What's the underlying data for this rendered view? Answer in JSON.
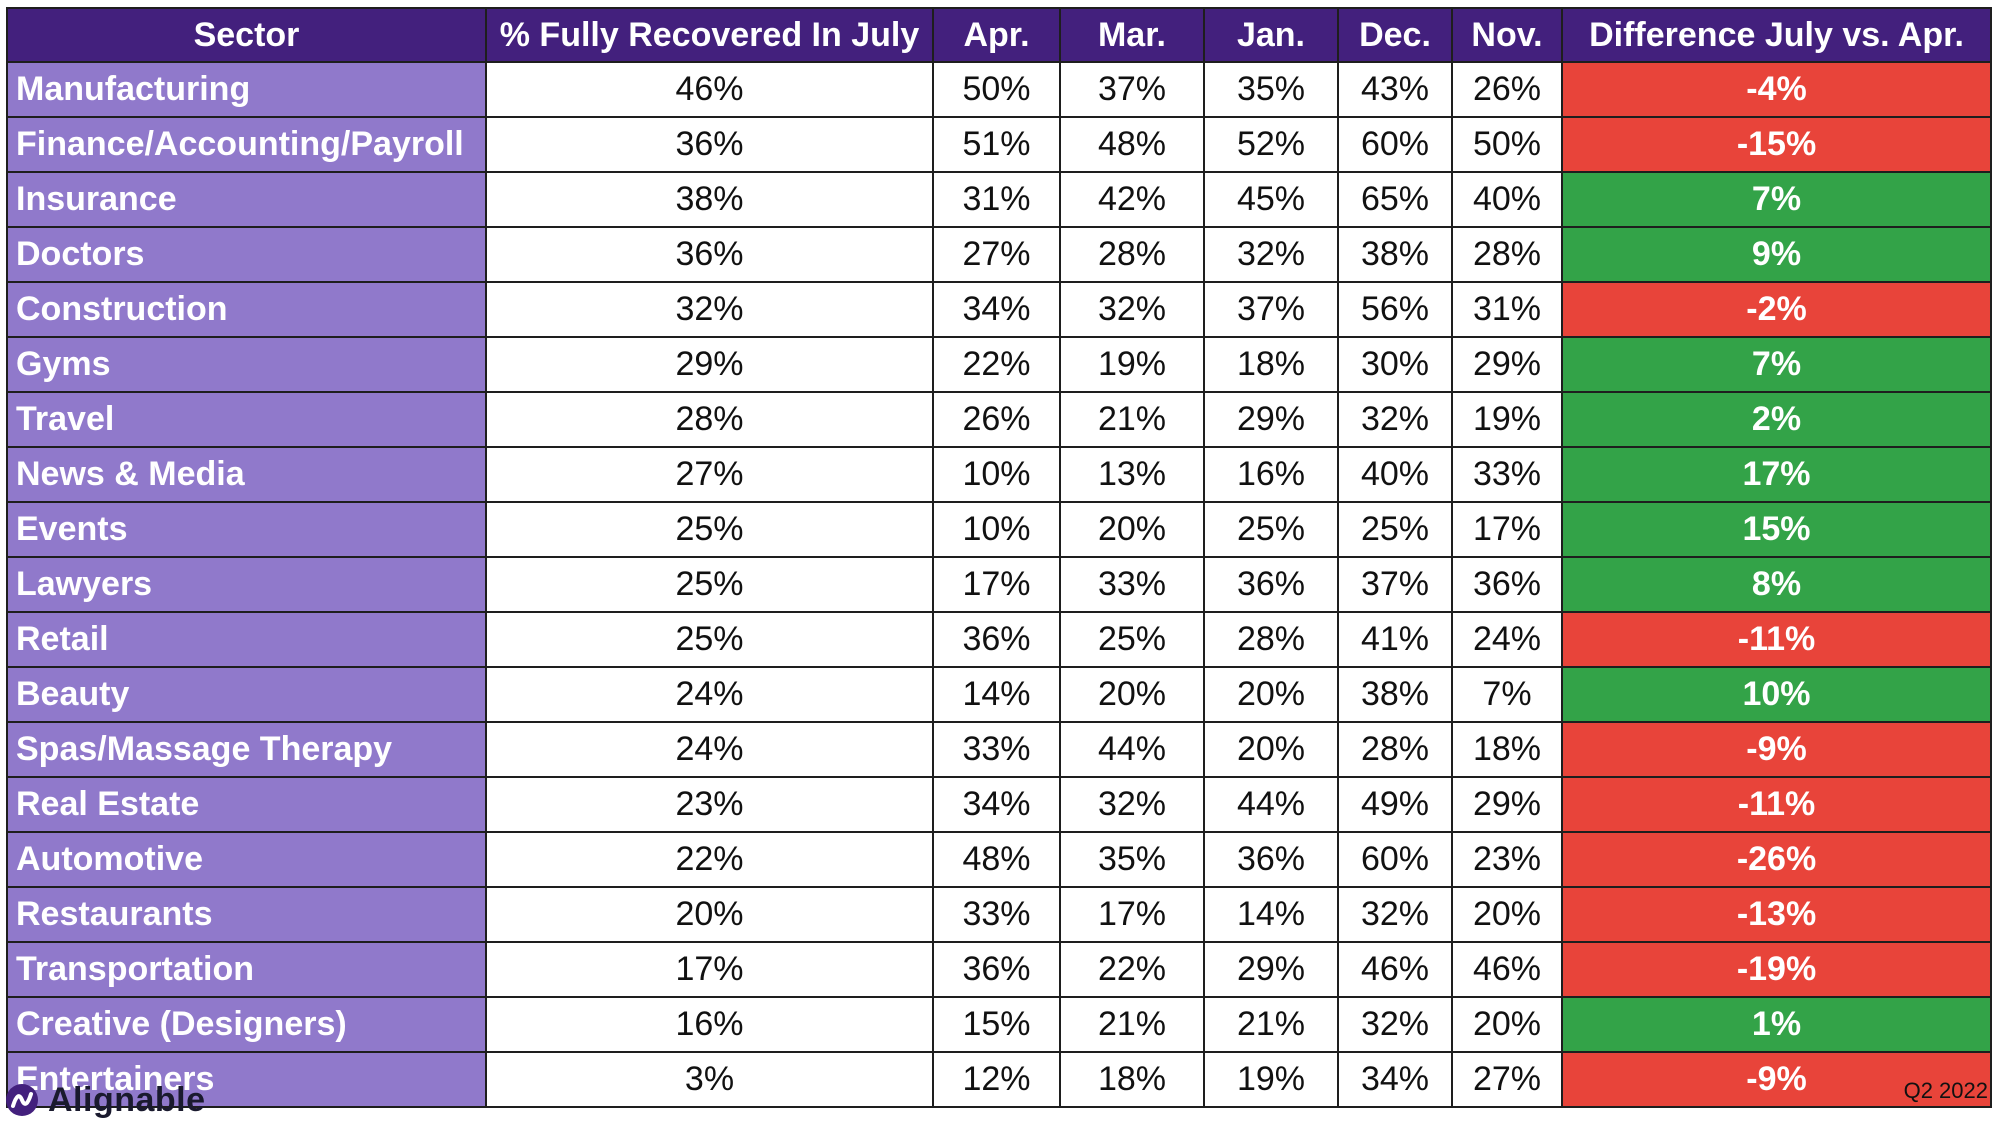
{
  "columns": [
    "Sector",
    "% Fully Recovered In July",
    "Apr.",
    "Mar.",
    "Jan.",
    "Dec.",
    "Nov.",
    "Difference July vs. Apr."
  ],
  "rows": [
    {
      "sector": "Manufacturing",
      "july": "46%",
      "apr": "50%",
      "mar": "37%",
      "jan": "35%",
      "dec": "43%",
      "nov": "26%",
      "diff": "-4%"
    },
    {
      "sector": "Finance/Accounting/Payroll",
      "july": "36%",
      "apr": "51%",
      "mar": "48%",
      "jan": "52%",
      "dec": "60%",
      "nov": "50%",
      "diff": "-15%"
    },
    {
      "sector": "Insurance",
      "july": "38%",
      "apr": "31%",
      "mar": "42%",
      "jan": "45%",
      "dec": "65%",
      "nov": "40%",
      "diff": "7%"
    },
    {
      "sector": "Doctors",
      "july": "36%",
      "apr": "27%",
      "mar": "28%",
      "jan": "32%",
      "dec": "38%",
      "nov": "28%",
      "diff": "9%"
    },
    {
      "sector": "Construction",
      "july": "32%",
      "apr": "34%",
      "mar": "32%",
      "jan": "37%",
      "dec": "56%",
      "nov": "31%",
      "diff": "-2%"
    },
    {
      "sector": "Gyms",
      "july": "29%",
      "apr": "22%",
      "mar": "19%",
      "jan": "18%",
      "dec": "30%",
      "nov": "29%",
      "diff": "7%"
    },
    {
      "sector": "Travel",
      "july": "28%",
      "apr": "26%",
      "mar": "21%",
      "jan": "29%",
      "dec": "32%",
      "nov": "19%",
      "diff": "2%"
    },
    {
      "sector": "News & Media",
      "july": "27%",
      "apr": "10%",
      "mar": "13%",
      "jan": "16%",
      "dec": "40%",
      "nov": "33%",
      "diff": "17%"
    },
    {
      "sector": "Events",
      "july": "25%",
      "apr": "10%",
      "mar": "20%",
      "jan": "25%",
      "dec": "25%",
      "nov": "17%",
      "diff": "15%"
    },
    {
      "sector": "Lawyers",
      "july": "25%",
      "apr": "17%",
      "mar": "33%",
      "jan": "36%",
      "dec": "37%",
      "nov": "36%",
      "diff": "8%"
    },
    {
      "sector": "Retail",
      "july": "25%",
      "apr": "36%",
      "mar": "25%",
      "jan": "28%",
      "dec": "41%",
      "nov": "24%",
      "diff": "-11%"
    },
    {
      "sector": "Beauty",
      "july": "24%",
      "apr": "14%",
      "mar": "20%",
      "jan": "20%",
      "dec": "38%",
      "nov": "7%",
      "diff": "10%"
    },
    {
      "sector": "Spas/Massage Therapy",
      "july": "24%",
      "apr": "33%",
      "mar": "44%",
      "jan": "20%",
      "dec": "28%",
      "nov": "18%",
      "diff": "-9%"
    },
    {
      "sector": "Real Estate",
      "july": "23%",
      "apr": "34%",
      "mar": "32%",
      "jan": "44%",
      "dec": "49%",
      "nov": "29%",
      "diff": "-11%"
    },
    {
      "sector": "Automotive",
      "july": "22%",
      "apr": "48%",
      "mar": "35%",
      "jan": "36%",
      "dec": "60%",
      "nov": "23%",
      "diff": "-26%"
    },
    {
      "sector": "Restaurants",
      "july": "20%",
      "apr": "33%",
      "mar": "17%",
      "jan": "14%",
      "dec": "32%",
      "nov": "20%",
      "diff": "-13%"
    },
    {
      "sector": "Transportation",
      "july": "17%",
      "apr": "36%",
      "mar": "22%",
      "jan": "29%",
      "dec": "46%",
      "nov": "46%",
      "diff": "-19%"
    },
    {
      "sector": "Creative (Designers)",
      "july": "16%",
      "apr": "15%",
      "mar": "21%",
      "jan": "21%",
      "dec": "32%",
      "nov": "20%",
      "diff": "1%"
    },
    {
      "sector": "Entertainers",
      "july": "3%",
      "apr": "12%",
      "mar": "18%",
      "jan": "19%",
      "dec": "34%",
      "nov": "27%",
      "diff": "-9%"
    }
  ],
  "colors": {
    "header_bg": "#43207d",
    "sector_bg": "#9079cb",
    "negative": "#e8443a",
    "positive": "#33a348"
  },
  "brand": {
    "name": "Alignable",
    "icon": "alignable-logo-icon"
  },
  "footer": {
    "quarter": "Q2 2022"
  },
  "chart_data": {
    "type": "table",
    "columns": [
      "Sector",
      "% Fully Recovered In July",
      "Apr.",
      "Mar.",
      "Jan.",
      "Dec.",
      "Nov.",
      "Difference July vs. Apr."
    ],
    "rows": [
      [
        "Manufacturing",
        46,
        50,
        37,
        35,
        43,
        26,
        -4
      ],
      [
        "Finance/Accounting/Payroll",
        36,
        51,
        48,
        52,
        60,
        50,
        -15
      ],
      [
        "Insurance",
        38,
        31,
        42,
        45,
        65,
        40,
        7
      ],
      [
        "Doctors",
        36,
        27,
        28,
        32,
        38,
        28,
        9
      ],
      [
        "Construction",
        32,
        34,
        32,
        37,
        56,
        31,
        -2
      ],
      [
        "Gyms",
        29,
        22,
        19,
        18,
        30,
        29,
        7
      ],
      [
        "Travel",
        28,
        26,
        21,
        29,
        32,
        19,
        2
      ],
      [
        "News & Media",
        27,
        10,
        13,
        16,
        40,
        33,
        17
      ],
      [
        "Events",
        25,
        10,
        20,
        25,
        25,
        17,
        15
      ],
      [
        "Lawyers",
        25,
        17,
        33,
        36,
        37,
        36,
        8
      ],
      [
        "Retail",
        25,
        36,
        25,
        28,
        41,
        24,
        -11
      ],
      [
        "Beauty",
        24,
        14,
        20,
        20,
        38,
        7,
        10
      ],
      [
        "Spas/Massage Therapy",
        24,
        33,
        44,
        20,
        28,
        18,
        -9
      ],
      [
        "Real Estate",
        23,
        34,
        32,
        44,
        49,
        29,
        -11
      ],
      [
        "Automotive",
        22,
        48,
        35,
        36,
        60,
        23,
        -26
      ],
      [
        "Restaurants",
        20,
        33,
        17,
        14,
        32,
        20,
        -13
      ],
      [
        "Transportation",
        17,
        36,
        22,
        29,
        46,
        46,
        -19
      ],
      [
        "Creative (Designers)",
        16,
        15,
        21,
        21,
        32,
        20,
        1
      ],
      [
        "Entertainers",
        3,
        12,
        18,
        19,
        34,
        27,
        -9
      ]
    ]
  }
}
